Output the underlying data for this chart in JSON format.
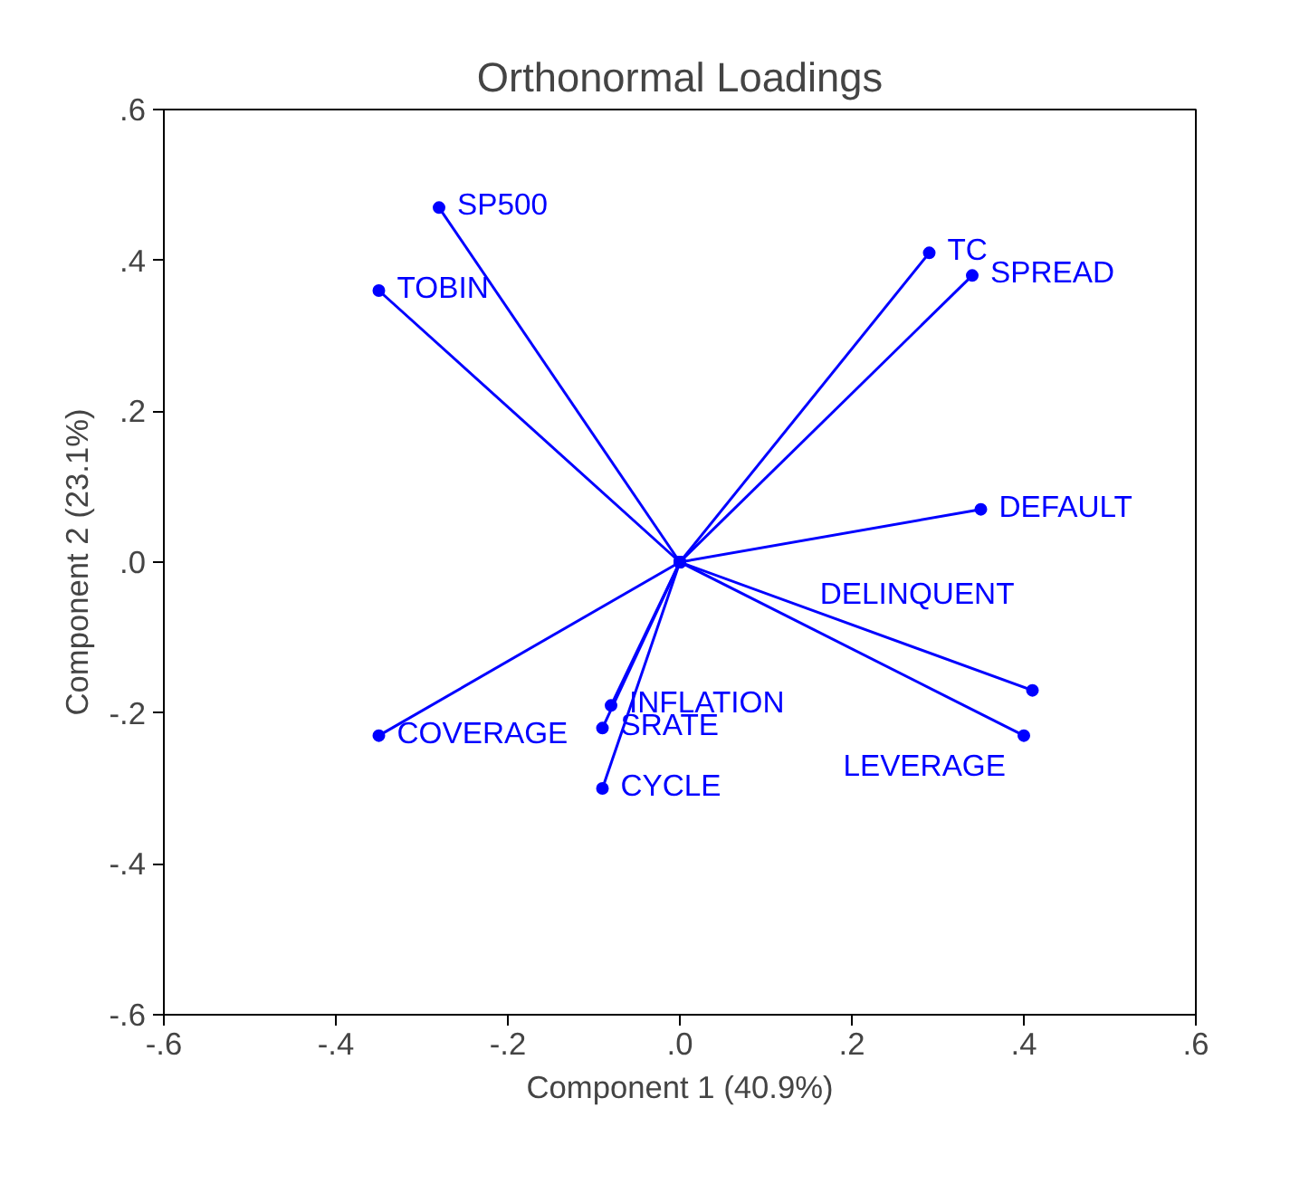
{
  "chart_data": {
    "type": "line",
    "title": "Orthonormal Loadings",
    "xlabel": "Component 1 (40.9%)",
    "ylabel": "Component 2 (23.1%)",
    "xlim": [
      -0.6,
      0.6
    ],
    "ylim": [
      -0.6,
      0.6
    ],
    "xticks": [
      {
        "value": -0.6,
        "label": "-.6"
      },
      {
        "value": -0.4,
        "label": "-.4"
      },
      {
        "value": -0.2,
        "label": "-.2"
      },
      {
        "value": 0,
        "label": ".0"
      },
      {
        "value": 0.2,
        "label": ".2"
      },
      {
        "value": 0.4,
        "label": ".4"
      },
      {
        "value": 0.6,
        "label": ".6"
      }
    ],
    "yticks": [
      {
        "value": -0.6,
        "label": "-.6"
      },
      {
        "value": -0.4,
        "label": "-.4"
      },
      {
        "value": -0.2,
        "label": "-.2"
      },
      {
        "value": 0,
        "label": ".0"
      },
      {
        "value": 0.2,
        "label": ".2"
      },
      {
        "value": 0.4,
        "label": ".4"
      },
      {
        "value": 0.6,
        "label": ".6"
      }
    ],
    "grid": false,
    "marker": "circle",
    "line_style": "solid",
    "series": [
      {
        "name": "SP500",
        "color": "#0000ff",
        "x": [
          0,
          -0.28
        ],
        "values": [
          0,
          0.47
        ]
      },
      {
        "name": "TOBIN",
        "color": "#0000ff",
        "x": [
          0,
          -0.35
        ],
        "values": [
          0,
          0.36
        ]
      },
      {
        "name": "TC",
        "color": "#0000ff",
        "x": [
          0,
          0.29
        ],
        "values": [
          0,
          0.41
        ]
      },
      {
        "name": "SPREAD",
        "color": "#0000ff",
        "x": [
          0,
          0.34
        ],
        "values": [
          0,
          0.38
        ]
      },
      {
        "name": "DEFAULT",
        "color": "#0000ff",
        "x": [
          0,
          0.35
        ],
        "values": [
          0,
          0.07
        ]
      },
      {
        "name": "DELINQUENT",
        "color": "#0000ff",
        "x": [
          0,
          0.41
        ],
        "values": [
          0,
          -0.17
        ]
      },
      {
        "name": "LEVERAGE",
        "color": "#0000ff",
        "x": [
          0,
          0.4
        ],
        "values": [
          0,
          -0.23
        ]
      },
      {
        "name": "COVERAGE",
        "color": "#0000ff",
        "x": [
          0,
          -0.35
        ],
        "values": [
          0,
          -0.23
        ]
      },
      {
        "name": "INFLATION",
        "color": "#0000ff",
        "x": [
          0,
          -0.08
        ],
        "values": [
          0,
          -0.19
        ]
      },
      {
        "name": "SRATE",
        "color": "#0000ff",
        "x": [
          0,
          -0.09
        ],
        "values": [
          0,
          -0.22
        ]
      },
      {
        "name": "CYCLE",
        "color": "#0000ff",
        "x": [
          0,
          -0.09
        ],
        "values": [
          0,
          -0.3
        ]
      }
    ]
  }
}
